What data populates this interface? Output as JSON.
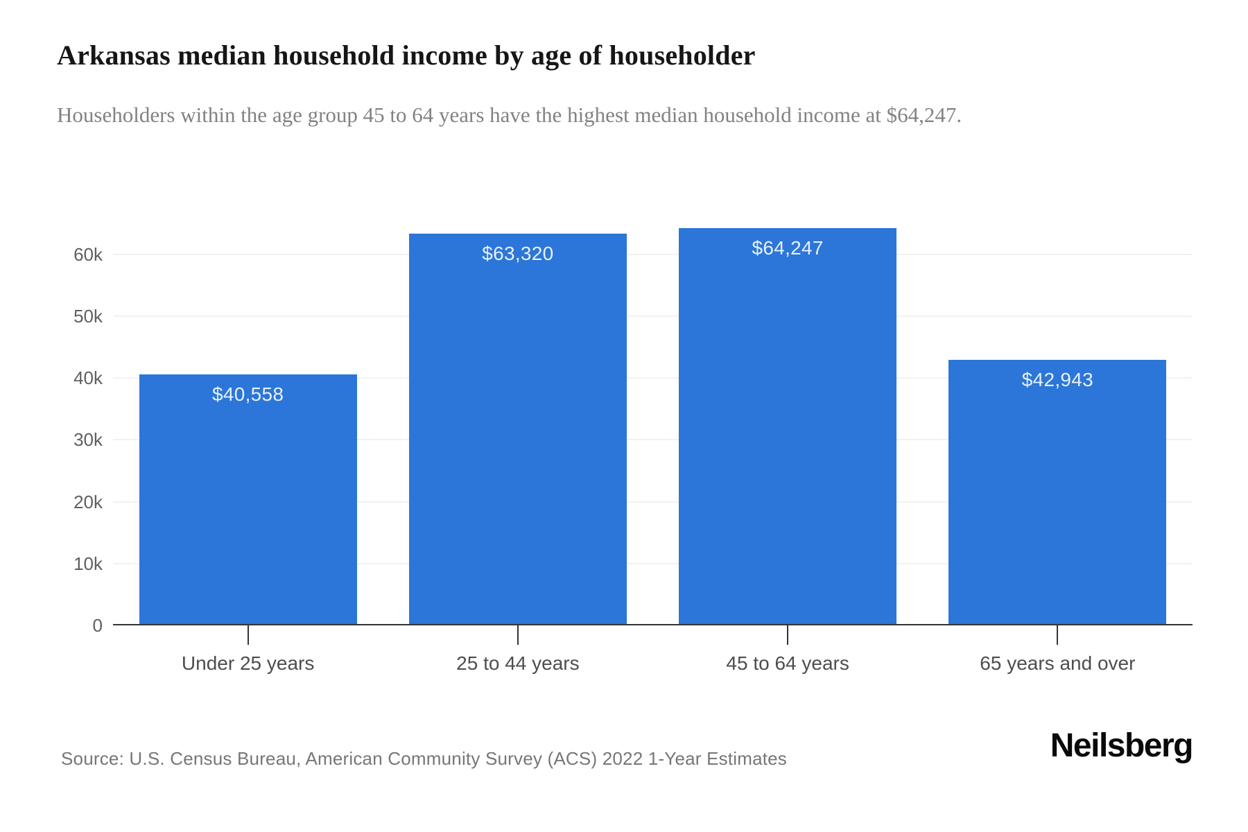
{
  "page": {
    "title": "Arkansas median household income by age of householder",
    "subtitle": "Householders within the age group 45 to 64 years have the highest median household income at $64,247.",
    "source": "Source: U.S. Census Bureau, American Community Survey (ACS) 2022 1-Year Estimates",
    "brand": "Neilsberg"
  },
  "colors": {
    "bar": "#2B76D8",
    "bar_label": "#E9F0FA",
    "axis_line": "#333333",
    "gridline": "#F1F1F1",
    "tick_label": "#5F5F5F",
    "category_label": "#4D4D4D",
    "title": "#161616",
    "subtitle": "#828282",
    "source": "#767676",
    "brand": "#0A0A0A"
  },
  "chart_data": {
    "type": "bar",
    "title": "Arkansas median household income by age of householder",
    "subtitle": "Householders within the age group 45 to 64 years have the highest median household income at $64,247.",
    "categories": [
      "Under 25 years",
      "25 to 44 years",
      "45 to 64 years",
      "65 years and over"
    ],
    "values": [
      40558,
      63320,
      64247,
      42943
    ],
    "value_labels": [
      "$40,558",
      "$63,320",
      "$64,247",
      "$42,943"
    ],
    "yticks": [
      0,
      10000,
      20000,
      30000,
      40000,
      50000,
      60000
    ],
    "ytick_labels": [
      "0",
      "10k",
      "20k",
      "30k",
      "40k",
      "50k",
      "60k"
    ],
    "ylim": [
      0,
      67500
    ],
    "xlabel": "",
    "ylabel": "",
    "grid": true,
    "legend_position": "none",
    "source": "Source: U.S. Census Bureau, American Community Survey (ACS) 2022 1-Year Estimates"
  }
}
